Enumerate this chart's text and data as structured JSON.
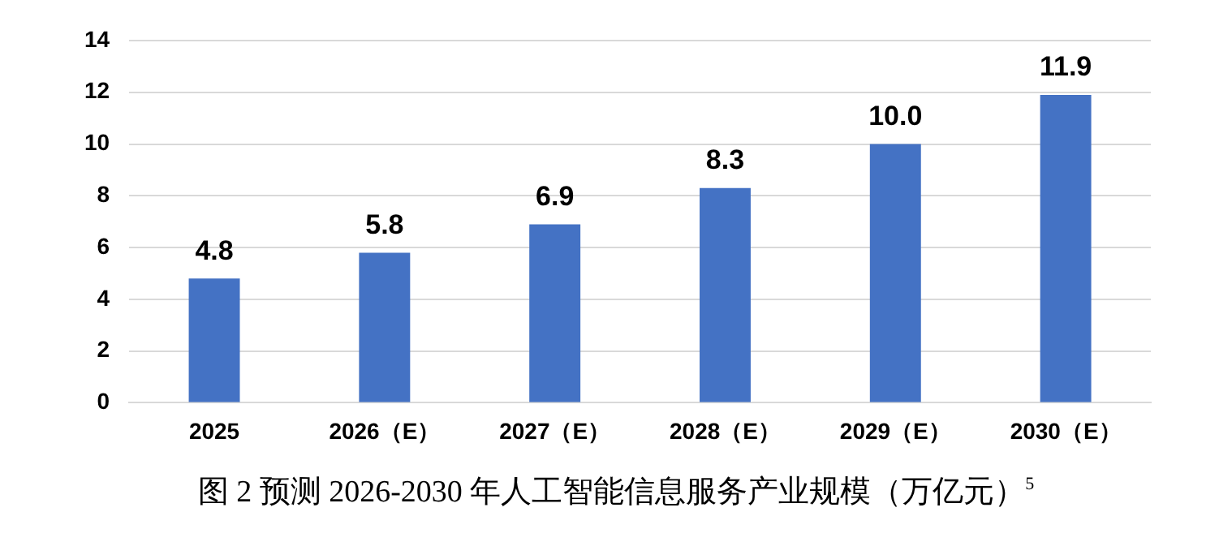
{
  "chart_data": {
    "type": "bar",
    "title": "图 2 预测 2026-2030 年人工智能信息服务产业规模（万亿元）$^{5}$",
    "categories": [
      "2025",
      "2026（E）",
      "2027（E）",
      "2028（E）",
      "2029（E）",
      "2030（E）"
    ],
    "values": [
      4.8,
      5.8,
      6.9,
      8.3,
      10.0,
      11.9
    ],
    "value_labels": [
      "4.8",
      "5.8",
      "6.9",
      "8.3",
      "10.0",
      "11.9"
    ],
    "color": "#4472c4",
    "ylim": [
      0,
      14
    ],
    "yticks": [
      0,
      2,
      4,
      6,
      8,
      10,
      12,
      14
    ],
    "grid": "y",
    "legend": false
  }
}
